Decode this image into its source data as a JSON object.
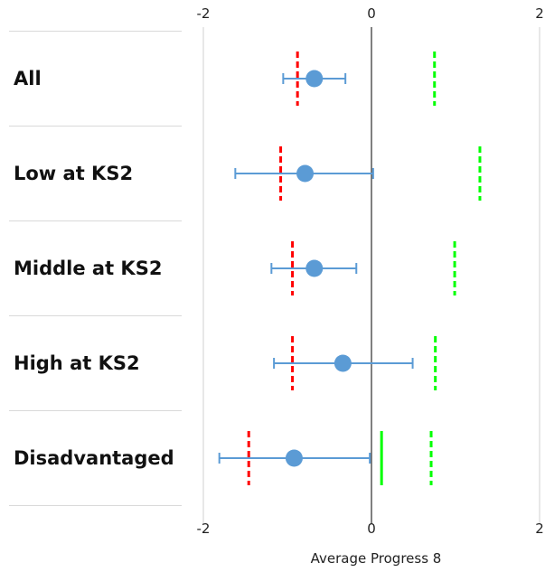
{
  "chart_data": {
    "type": "scatter",
    "xlabel": "Average Progress 8",
    "xlim": [
      -2,
      2
    ],
    "x_ticks": [
      "-2",
      "0",
      "2"
    ],
    "categories": [
      "All",
      "Low at KS2",
      "Middle at KS2",
      "High at KS2",
      "Disadvantaged"
    ],
    "series": [
      {
        "kind": "point-with-error-bars",
        "color": "#5b9bd5",
        "points": [
          {
            "category": "All",
            "value": -0.68,
            "low": -1.05,
            "high": -0.31
          },
          {
            "category": "Low at KS2",
            "value": -0.79,
            "low": -1.62,
            "high": 0.02
          },
          {
            "category": "Middle at KS2",
            "value": -0.68,
            "low": -1.19,
            "high": -0.18
          },
          {
            "category": "High at KS2",
            "value": -0.34,
            "low": -1.16,
            "high": 0.49
          },
          {
            "category": "Disadvantaged",
            "value": -0.92,
            "low": -1.81,
            "high": -0.02
          }
        ]
      },
      {
        "kind": "dashed-marker",
        "color": "#ff0000",
        "values": [
          -0.88,
          -1.08,
          -0.94,
          -0.94,
          -1.46
        ]
      },
      {
        "kind": "dashed-marker",
        "color": "#00ff00",
        "values": [
          0.75,
          1.29,
          0.99,
          0.76,
          0.71
        ]
      },
      {
        "kind": "solid-marker",
        "color": "#00ff00",
        "values": [
          null,
          null,
          null,
          null,
          0.12
        ]
      }
    ],
    "grid": false,
    "legend": "none"
  }
}
